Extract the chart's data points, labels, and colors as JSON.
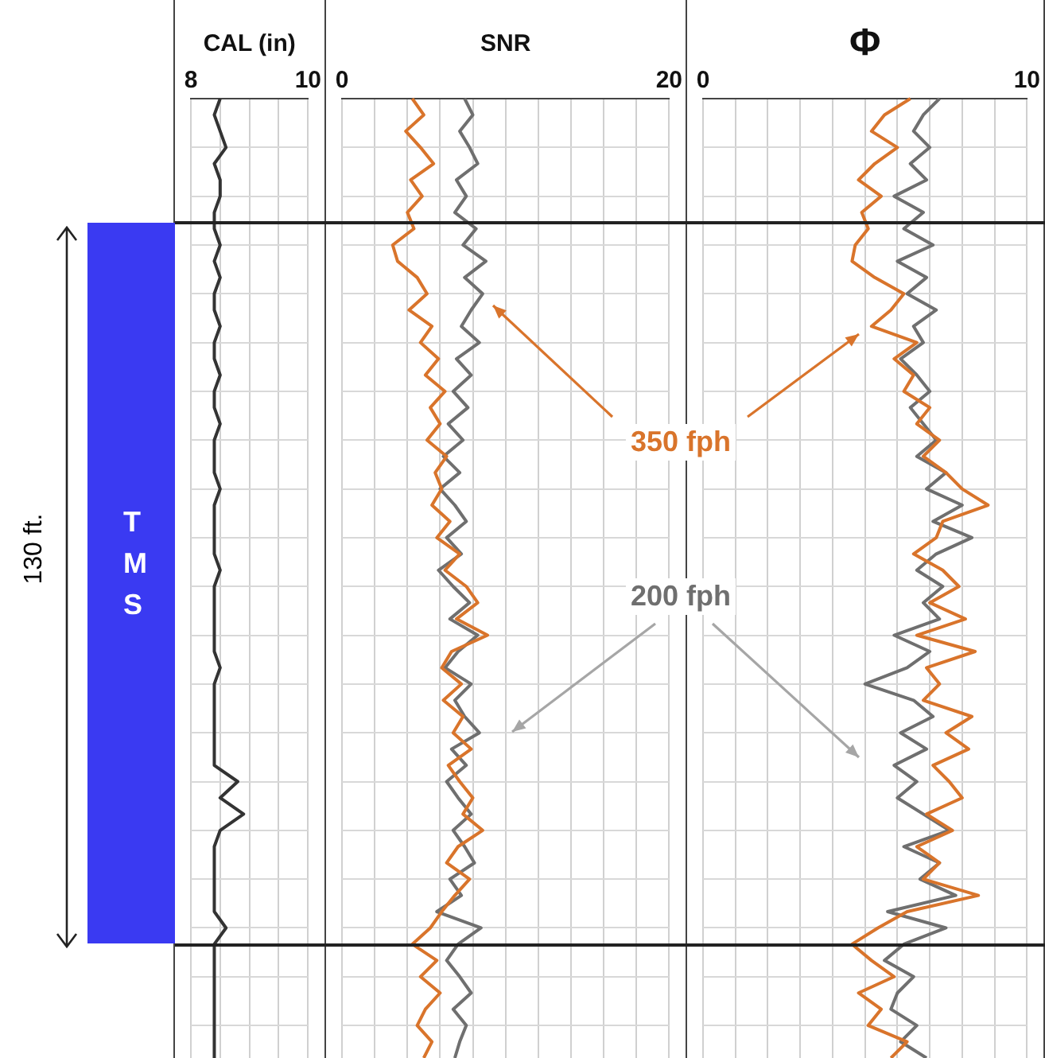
{
  "chart_data": [
    {
      "type": "other",
      "annotations": [
        "T M S",
        "130 ft."
      ]
    },
    {
      "type": "line",
      "orientation": "horizontal",
      "title": "CAL (in)",
      "categories": [
        null,
        null,
        null,
        null,
        null,
        null,
        null,
        null,
        null,
        null,
        null,
        null,
        null,
        null,
        null,
        null,
        null,
        null,
        null,
        null,
        null,
        null,
        null,
        null,
        null,
        null,
        null,
        null,
        null,
        null,
        null,
        null,
        null,
        null,
        null,
        null,
        null,
        null,
        null,
        null,
        null,
        null,
        null,
        null,
        null,
        null,
        null,
        null,
        null,
        null,
        null,
        null,
        null,
        null,
        null,
        null,
        null,
        null,
        null,
        null
      ],
      "series": [
        {
          "color": "#333333",
          "values": [
            8.5,
            8.4,
            8.5,
            8.6,
            8.4,
            8.5,
            8.5,
            8.4,
            8.4,
            8.5,
            8.4,
            8.5,
            8.4,
            8.4,
            8.5,
            8.4,
            8.4,
            8.5,
            8.4,
            8.4,
            8.5,
            8.4,
            8.4,
            8.4,
            8.5,
            8.4,
            8.4,
            8.4,
            8.4,
            8.5,
            8.4,
            8.4,
            8.4,
            8.4,
            8.4,
            8.5,
            8.4,
            8.4,
            8.4,
            8.4,
            8.4,
            8.4,
            8.8,
            8.5,
            8.9,
            8.5,
            8.4,
            8.4,
            8.4,
            8.4,
            8.4,
            8.6,
            8.4,
            8.4,
            8.4,
            8.4,
            8.4,
            8.4,
            8.4,
            8.4
          ]
        }
      ],
      "xlim": [
        8,
        10
      ],
      "xticks": [
        8,
        {
          "value": 8.5,
          "label": null
        },
        {
          "value": 9,
          "label": null
        },
        {
          "value": 9.5,
          "label": null
        },
        10
      ],
      "grid": true
    },
    {
      "type": "line",
      "orientation": "horizontal",
      "title": "SNR",
      "categories": [
        null,
        null,
        null,
        null,
        null,
        null,
        null,
        null,
        null,
        null,
        null,
        null,
        null,
        null,
        null,
        null,
        null,
        null,
        null,
        null,
        null,
        null,
        null,
        null,
        null,
        null,
        null,
        null,
        null,
        null,
        null,
        null,
        null,
        null,
        null,
        null,
        null,
        null,
        null,
        null,
        null,
        null,
        null,
        null,
        null,
        null,
        null,
        null,
        null,
        null,
        null,
        null,
        null,
        null,
        null,
        null,
        null,
        null,
        null,
        null
      ],
      "series": [
        {
          "name": "350 fph",
          "color": "#d9742b",
          "values": [
            4.3,
            5.0,
            3.9,
            4.8,
            5.6,
            4.2,
            4.9,
            4.0,
            4.4,
            3.1,
            3.4,
            4.6,
            5.2,
            4.1,
            5.5,
            4.8,
            5.9,
            5.1,
            6.3,
            5.4,
            6.0,
            5.2,
            6.4,
            5.7,
            6.1,
            5.5,
            6.6,
            5.8,
            7.2,
            6.3,
            7.6,
            8.3,
            7.0,
            8.9,
            6.7,
            6.1,
            7.3,
            6.2,
            7.4,
            6.8,
            7.9,
            6.5,
            7.2,
            8.0,
            7.4,
            8.6,
            7.1,
            6.4,
            7.8,
            6.9,
            6.1,
            5.4,
            4.3,
            5.8,
            4.8,
            6.0,
            5.1,
            4.6,
            5.5,
            5.0
          ]
        },
        {
          "name": "200 fph",
          "color": "#6f6f6f",
          "values": [
            7.5,
            8.0,
            7.2,
            7.8,
            8.3,
            7.0,
            7.6,
            6.9,
            8.2,
            7.4,
            8.8,
            7.5,
            8.6,
            7.9,
            7.3,
            8.4,
            7.0,
            7.9,
            6.8,
            7.7,
            6.5,
            7.4,
            6.2,
            7.2,
            6.0,
            6.9,
            7.6,
            6.4,
            7.3,
            5.9,
            6.8,
            7.8,
            6.6,
            8.3,
            7.1,
            6.3,
            7.9,
            6.9,
            7.5,
            8.4,
            6.7,
            7.6,
            6.4,
            7.1,
            7.9,
            6.8,
            7.5,
            8.1,
            6.6,
            7.3,
            5.8,
            8.5,
            7.1,
            6.4,
            7.2,
            7.9,
            6.8,
            7.6,
            7.2,
            6.9
          ]
        }
      ],
      "xlim": [
        0,
        20
      ],
      "xticks": [
        0,
        {
          "value": 2,
          "label": null
        },
        {
          "value": 4,
          "label": null
        },
        {
          "value": 6,
          "label": null
        },
        {
          "value": 8,
          "label": null
        },
        {
          "value": 10,
          "label": null
        },
        {
          "value": 12,
          "label": null
        },
        {
          "value": 14,
          "label": null
        },
        {
          "value": 16,
          "label": null
        },
        {
          "value": 18,
          "label": null
        },
        20
      ],
      "grid": true
    },
    {
      "type": "line",
      "orientation": "horizontal",
      "title": "Φ",
      "categories": [
        null,
        null,
        null,
        null,
        null,
        null,
        null,
        null,
        null,
        null,
        null,
        null,
        null,
        null,
        null,
        null,
        null,
        null,
        null,
        null,
        null,
        null,
        null,
        null,
        null,
        null,
        null,
        null,
        null,
        null,
        null,
        null,
        null,
        null,
        null,
        null,
        null,
        null,
        null,
        null,
        null,
        null,
        null,
        null,
        null,
        null,
        null,
        null,
        null,
        null,
        null,
        null,
        null,
        null,
        null,
        null,
        null,
        null,
        null,
        null
      ],
      "series": [
        {
          "color": "#d9742b",
          "values": [
            6.4,
            5.6,
            5.2,
            6.0,
            5.3,
            4.8,
            5.5,
            4.9,
            5.1,
            4.7,
            4.6,
            5.3,
            6.2,
            5.8,
            5.2,
            6.6,
            5.9,
            6.5,
            6.2,
            7.0,
            6.6,
            7.3,
            6.8,
            7.5,
            8.0,
            8.8,
            7.4,
            7.2,
            6.5,
            7.4,
            7.9,
            7.0,
            8.1,
            6.6,
            8.4,
            6.9,
            7.3,
            6.8,
            8.3,
            7.5,
            8.2,
            7.1,
            7.6,
            8.0,
            6.9,
            7.7,
            6.6,
            7.3,
            6.8,
            8.5,
            6.3,
            5.4,
            4.6,
            5.2,
            5.9,
            4.8,
            5.5,
            5.1,
            6.3,
            5.8
          ]
        },
        {
          "color": "#6f6f6f",
          "values": [
            7.3,
            6.8,
            6.5,
            7.0,
            6.4,
            6.9,
            5.9,
            6.8,
            6.2,
            7.1,
            6.0,
            6.9,
            6.3,
            7.2,
            6.5,
            6.8,
            6.1,
            6.6,
            7.0,
            6.4,
            6.8,
            7.2,
            6.6,
            7.5,
            6.9,
            8.0,
            7.1,
            8.3,
            7.2,
            6.6,
            7.4,
            6.8,
            7.3,
            5.9,
            7.0,
            6.3,
            5.0,
            6.5,
            7.1,
            6.1,
            6.9,
            5.9,
            6.6,
            6.0,
            6.8,
            7.6,
            6.2,
            7.3,
            6.7,
            7.8,
            5.7,
            7.5,
            6.2,
            5.6,
            6.5,
            6.0,
            5.8,
            6.6,
            6.1,
            6.9
          ]
        }
      ],
      "xlim": [
        0,
        10
      ],
      "xticks": [
        0,
        {
          "value": 1,
          "label": null
        },
        {
          "value": 2,
          "label": null
        },
        {
          "value": 3,
          "label": null
        },
        {
          "value": 4,
          "label": null
        },
        {
          "value": 5,
          "label": null
        },
        {
          "value": 6,
          "label": null
        },
        {
          "value": 7,
          "label": null
        },
        {
          "value": 8,
          "label": null
        },
        {
          "value": 9,
          "label": null
        },
        10
      ],
      "grid": true
    }
  ]
}
